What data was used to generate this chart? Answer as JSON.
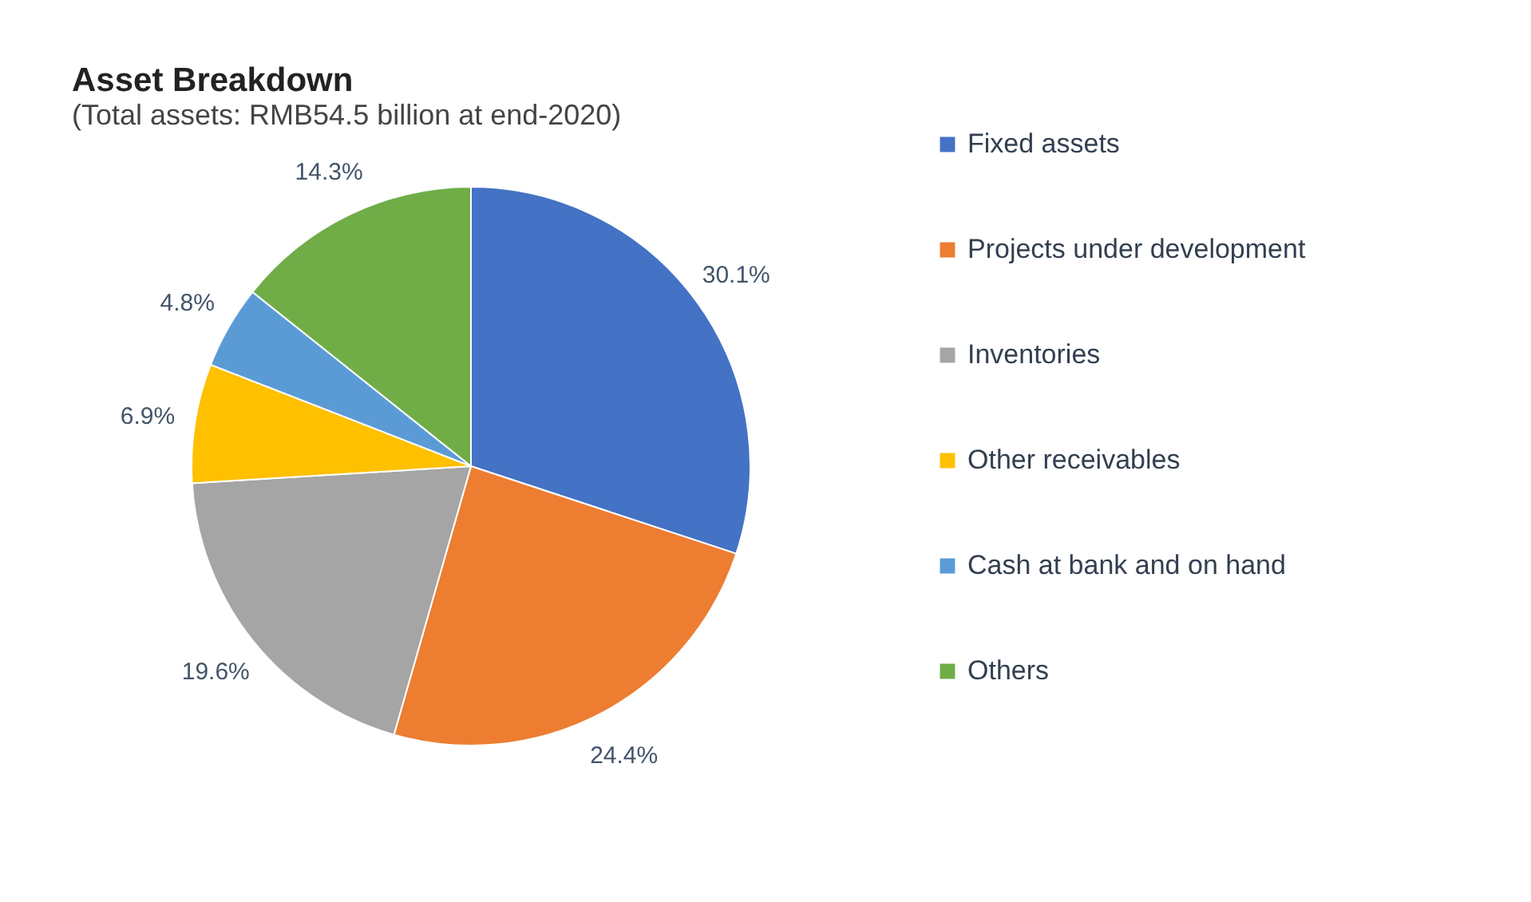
{
  "chart_data": {
    "type": "pie",
    "title": "Asset Breakdown",
    "subtitle": "(Total assets: RMB54.5 billion at end-2020)",
    "categories": [
      "Fixed assets",
      "Projects under development",
      "Inventories",
      "Other receivables",
      "Cash at bank and on hand",
      "Others"
    ],
    "values": [
      30.1,
      24.4,
      19.6,
      6.9,
      4.8,
      14.3
    ],
    "colors": [
      "#4472c4",
      "#ed7d31",
      "#a5a5a5",
      "#ffc000",
      "#5b9bd5",
      "#70ad47"
    ],
    "value_labels": [
      "30.1%",
      "24.4%",
      "19.6%",
      "6.9%",
      "4.8%",
      "14.3%"
    ],
    "legend": "right"
  }
}
